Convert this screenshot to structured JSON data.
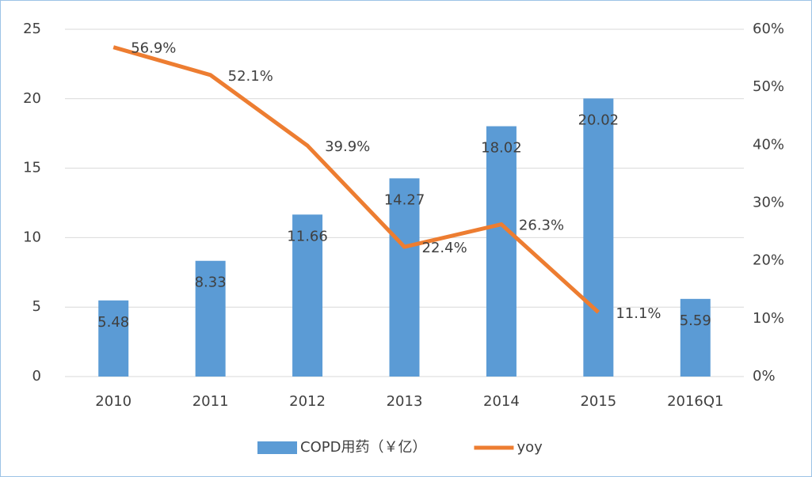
{
  "chart_data": {
    "type": "bar_line",
    "categories": [
      "2010",
      "2011",
      "2012",
      "2013",
      "2014",
      "2015",
      "2016Q1"
    ],
    "series": [
      {
        "name": "COPD用药（￥亿）",
        "color": "#5b9bd5",
        "type": "bar",
        "values": [
          5.48,
          8.33,
          11.66,
          14.27,
          18.02,
          20.02,
          5.59
        ]
      },
      {
        "name": "yoy",
        "color": "#ed7d31",
        "type": "line",
        "axis": "y2",
        "values": [
          56.9,
          52.1,
          39.9,
          22.4,
          26.3,
          11.1,
          null
        ],
        "value_labels": [
          "56.9%",
          "52.1%",
          "39.9%",
          "22.4%",
          "26.3%",
          "11.1%",
          null
        ]
      }
    ],
    "ylim": [
      0,
      25
    ],
    "yticks": [
      0,
      5,
      10,
      15,
      20,
      25
    ],
    "y2lim": [
      0,
      60
    ],
    "y2ticks": [
      {
        "value": 0,
        "label": "0%"
      },
      {
        "value": 10,
        "label": "10%"
      },
      {
        "value": 20,
        "label": "20%"
      },
      {
        "value": 30,
        "label": "30%"
      },
      {
        "value": 40,
        "label": "40%"
      },
      {
        "value": 50,
        "label": "50%"
      },
      {
        "value": 60,
        "label": "60%"
      }
    ],
    "grid": true,
    "legend": "bottom"
  }
}
